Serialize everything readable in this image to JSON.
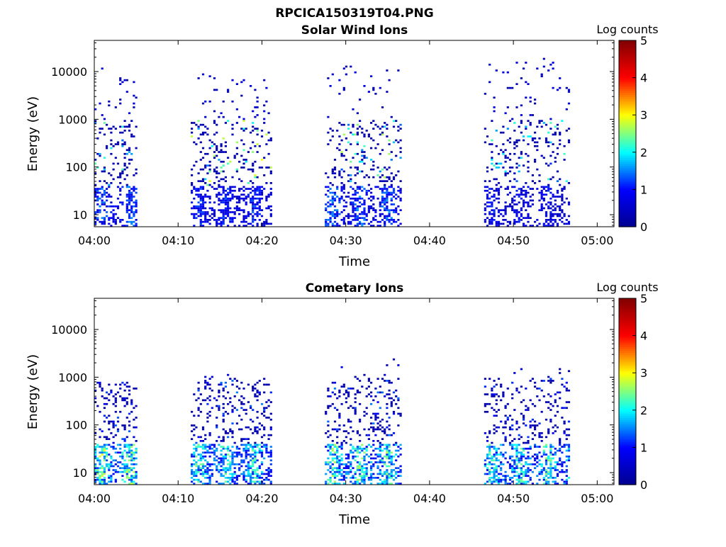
{
  "figure": {
    "title": "RPCICA150319T04.PNG"
  },
  "colormap": {
    "name": "jet",
    "stops": [
      "#00008f",
      "#0000ff",
      "#00ffff",
      "#ffff00",
      "#ff0000",
      "#800000"
    ]
  },
  "chart_data": [
    {
      "type": "heatmap",
      "title": "Solar Wind Ions",
      "xlabel": "Time",
      "ylabel": "Energy (eV)",
      "xticks": [
        "04:00",
        "04:10",
        "04:20",
        "04:30",
        "04:40",
        "04:50",
        "05:00"
      ],
      "xlim_minutes": [
        0,
        62
      ],
      "yscale": "log",
      "ylim": [
        5.6,
        45000
      ],
      "yticks": [
        10,
        100,
        1000,
        10000
      ],
      "ytick_labels": [
        "10",
        "100",
        "1000",
        "10000"
      ],
      "colorbar": {
        "label": "Log counts",
        "range": [
          0,
          5
        ],
        "ticks": [
          "0",
          "1",
          "2",
          "3",
          "4",
          "5"
        ]
      },
      "bursts": [
        {
          "t_start": 0.0,
          "t_end": 5.0,
          "e_low": 6,
          "e_high": 12000,
          "low_band_peak": 1.6,
          "mid_band_peak": 2.4,
          "density": 0.5
        },
        {
          "t_start": 11.5,
          "t_end": 21.0,
          "e_low": 6,
          "e_high": 9500,
          "low_band_peak": 1.4,
          "mid_band_peak": 3.0,
          "density": 0.55
        },
        {
          "t_start": 27.5,
          "t_end": 36.5,
          "e_low": 6,
          "e_high": 14000,
          "low_band_peak": 1.7,
          "mid_band_peak": 2.7,
          "density": 0.5
        },
        {
          "t_start": 46.5,
          "t_end": 56.5,
          "e_low": 6,
          "e_high": 20000,
          "low_band_peak": 1.2,
          "mid_band_peak": 2.3,
          "density": 0.45
        }
      ]
    },
    {
      "type": "heatmap",
      "title": "Cometary Ions",
      "xlabel": "Time",
      "ylabel": "Energy (eV)",
      "xticks": [
        "04:00",
        "04:10",
        "04:20",
        "04:30",
        "04:40",
        "04:50",
        "05:00"
      ],
      "xlim_minutes": [
        0,
        62
      ],
      "yscale": "log",
      "ylim": [
        5.6,
        45000
      ],
      "yticks": [
        10,
        100,
        1000,
        10000
      ],
      "ytick_labels": [
        "10",
        "100",
        "1000",
        "10000"
      ],
      "colorbar": {
        "label": "Log counts",
        "range": [
          0,
          5
        ],
        "ticks": [
          "0",
          "1",
          "2",
          "3",
          "4",
          "5"
        ]
      },
      "bursts": [
        {
          "t_start": 0.0,
          "t_end": 5.0,
          "e_low": 6,
          "e_high": 800,
          "low_band_peak": 3.0,
          "mid_band_peak": 1.4,
          "density": 0.6
        },
        {
          "t_start": 11.5,
          "t_end": 21.0,
          "e_low": 6,
          "e_high": 1200,
          "low_band_peak": 2.6,
          "mid_band_peak": 1.5,
          "density": 0.6
        },
        {
          "t_start": 27.5,
          "t_end": 36.5,
          "e_low": 6,
          "e_high": 2500,
          "low_band_peak": 2.8,
          "mid_band_peak": 1.5,
          "density": 0.6
        },
        {
          "t_start": 46.5,
          "t_end": 56.5,
          "e_low": 6,
          "e_high": 1600,
          "low_band_peak": 2.6,
          "mid_band_peak": 1.3,
          "density": 0.55
        }
      ]
    }
  ]
}
